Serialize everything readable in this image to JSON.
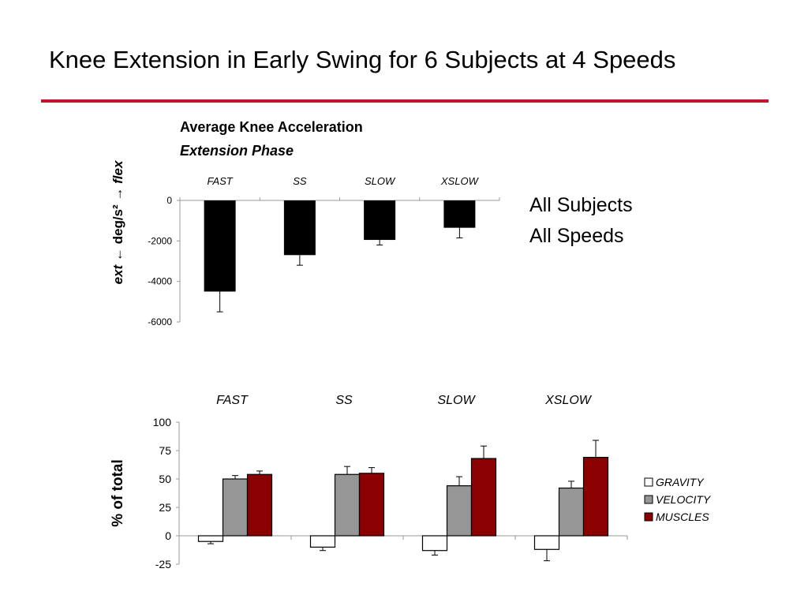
{
  "slide": {
    "title": "Knee Extension in Early Swing for 6 Subjects at 4 Speeds",
    "note_lines": [
      "All Subjects",
      "All Speeds"
    ]
  },
  "colors": {
    "title_rule": "#c0152a",
    "gravity": "#ffffff",
    "velocity": "#969696",
    "muscles": "#8b0000",
    "acceleration_bar": "#000000"
  },
  "chart_data": [
    {
      "type": "bar",
      "title": "Average Knee Acceleration",
      "subtitle": "Extension Phase",
      "categories": [
        "FAST",
        "SS",
        "SLOW",
        "XSLOW"
      ],
      "values": [
        -4500,
        -2700,
        -1950,
        -1350
      ],
      "error_bars": [
        1000,
        500,
        250,
        500
      ],
      "ylabel": {
        "left_word": "ext",
        "left_arrow": "←",
        "unit": "deg/s²",
        "right_arrow": "→",
        "right_word": "flex"
      },
      "ylim": [
        -6000,
        0
      ],
      "yticks": [
        0,
        -2000,
        -4000,
        -6000
      ],
      "grid": false,
      "legend": false
    },
    {
      "type": "bar",
      "categories": [
        "FAST",
        "SS",
        "SLOW",
        "XSLOW"
      ],
      "series": [
        {
          "name": "GRAVITY",
          "values": [
            -5,
            -10,
            -13,
            -12
          ],
          "errors": [
            2,
            3,
            4,
            10
          ]
        },
        {
          "name": "VELOCITY",
          "values": [
            50,
            54,
            44,
            42
          ],
          "errors": [
            3,
            7,
            8,
            6
          ]
        },
        {
          "name": "MUSCLES",
          "values": [
            54,
            55,
            68,
            69
          ],
          "errors": [
            3,
            5,
            11,
            15
          ]
        }
      ],
      "ylabel": "% of total",
      "ylim": [
        -25,
        100
      ],
      "yticks": [
        100,
        75,
        50,
        25,
        0,
        -25
      ],
      "grid": false,
      "legend": "right"
    }
  ]
}
